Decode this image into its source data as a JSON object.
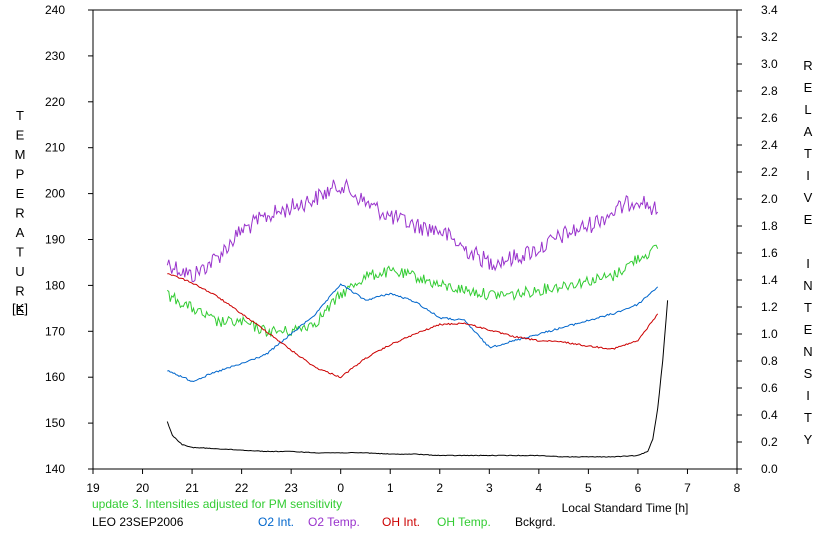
{
  "chart_data": {
    "type": "line",
    "left_axis": {
      "label": "TEMPERATURE",
      "unit": "[K]",
      "ylim": [
        140,
        240
      ],
      "ticks": [
        140,
        150,
        160,
        170,
        180,
        190,
        200,
        210,
        220,
        230,
        240
      ]
    },
    "right_axis": {
      "label": "RELATIVE INTENSITY",
      "ylim": [
        0.0,
        3.4
      ],
      "ticks": [
        "0.0",
        "0.2",
        "0.4",
        "0.6",
        "0.8",
        "1.0",
        "1.2",
        "1.4",
        "1.6",
        "1.8",
        "2.0",
        "2.2",
        "2.4",
        "2.6",
        "2.8",
        "3.0",
        "3.2",
        "3.4"
      ]
    },
    "x_axis": {
      "label": "Local Standard Time [h]",
      "xlim": [
        19,
        32
      ],
      "tick_labels": [
        "19",
        "20",
        "21",
        "22",
        "23",
        "0",
        "1",
        "2",
        "3",
        "4",
        "5",
        "6",
        "7",
        "8"
      ]
    },
    "series": [
      {
        "name": "O2 Int.",
        "axis": "right",
        "color": "#0066cc",
        "x": [
          20.5,
          21.0,
          21.5,
          22.0,
          22.5,
          23.0,
          23.5,
          24.0,
          24.5,
          25.0,
          25.5,
          26.0,
          26.5,
          27.0,
          27.5,
          28.0,
          28.5,
          29.0,
          29.5,
          30.0,
          30.4
        ],
        "y": [
          0.73,
          0.65,
          0.72,
          0.78,
          0.85,
          1.0,
          1.15,
          1.37,
          1.25,
          1.3,
          1.24,
          1.12,
          1.1,
          0.9,
          0.95,
          1.0,
          1.05,
          1.1,
          1.15,
          1.22,
          1.35
        ]
      },
      {
        "name": "O2 Temp.",
        "axis": "left",
        "color": "#9933cc",
        "x": [
          20.5,
          21.0,
          21.5,
          22.0,
          22.5,
          23.0,
          23.5,
          24.0,
          24.5,
          25.0,
          25.5,
          26.0,
          26.5,
          27.0,
          27.5,
          28.0,
          28.5,
          29.0,
          29.5,
          30.0,
          30.4
        ],
        "y": [
          185,
          182,
          186,
          192,
          195,
          197,
          199,
          202,
          198,
          195,
          193,
          192,
          188,
          185,
          186,
          188,
          191,
          193,
          196,
          199,
          196
        ]
      },
      {
        "name": "OH Int.",
        "axis": "right",
        "color": "#cc0000",
        "x": [
          20.5,
          21.0,
          21.5,
          22.0,
          22.5,
          23.0,
          23.5,
          24.0,
          24.5,
          25.0,
          25.5,
          26.0,
          26.5,
          27.0,
          27.5,
          28.0,
          28.5,
          29.0,
          29.5,
          30.0,
          30.4
        ],
        "y": [
          1.45,
          1.38,
          1.28,
          1.15,
          1.02,
          0.88,
          0.75,
          0.68,
          0.82,
          0.92,
          1.0,
          1.07,
          1.08,
          1.03,
          0.98,
          0.95,
          0.94,
          0.91,
          0.89,
          0.95,
          1.15
        ]
      },
      {
        "name": "OH Temp.",
        "axis": "left",
        "color": "#33cc33",
        "x": [
          20.5,
          21.0,
          21.5,
          22.0,
          22.5,
          23.0,
          23.5,
          24.0,
          24.5,
          25.0,
          25.5,
          26.0,
          26.5,
          27.0,
          27.5,
          28.0,
          28.5,
          29.0,
          29.5,
          30.0,
          30.4
        ],
        "y": [
          178,
          175,
          172,
          172,
          170,
          170,
          172,
          178,
          182,
          183,
          182,
          180,
          179,
          178,
          178,
          179,
          180,
          181,
          182,
          186,
          188
        ]
      },
      {
        "name": "Bckgrd.",
        "axis": "right",
        "color": "#000000",
        "x": [
          20.5,
          20.6,
          20.8,
          21.0,
          21.5,
          22.0,
          22.5,
          23.0,
          23.5,
          24.0,
          24.5,
          25.0,
          25.5,
          26.0,
          26.5,
          27.0,
          27.5,
          28.0,
          28.5,
          29.0,
          29.5,
          30.0,
          30.2,
          30.3,
          30.4,
          30.5,
          30.6
        ],
        "y": [
          0.35,
          0.25,
          0.18,
          0.16,
          0.15,
          0.14,
          0.13,
          0.13,
          0.12,
          0.12,
          0.12,
          0.11,
          0.11,
          0.1,
          0.1,
          0.1,
          0.1,
          0.1,
          0.09,
          0.09,
          0.09,
          0.1,
          0.13,
          0.22,
          0.45,
          0.8,
          1.25
        ]
      }
    ]
  },
  "footer": {
    "note": "update 3. Intensities adjusted for PM sensitivity",
    "station": "LEO 23SEP2006"
  },
  "colors": {
    "note": "#33cc33",
    "station": "#000000"
  }
}
